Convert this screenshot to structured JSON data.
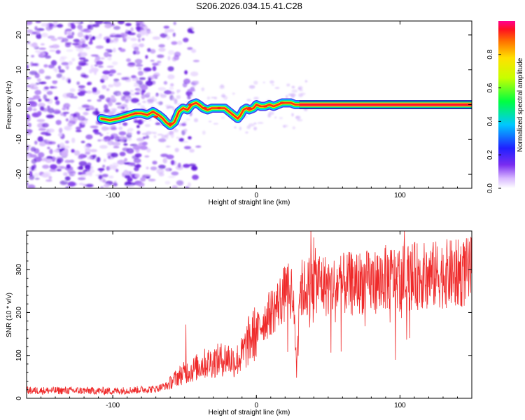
{
  "title": "S206.2026.034.15.41.C28",
  "chart_data": [
    {
      "type": "heatmap",
      "name": "spectrogram",
      "xlabel": "Height of straight line (km)",
      "ylabel": "Frequency (Hz)",
      "xlim": [
        -160,
        150
      ],
      "ylim": [
        -24,
        24
      ],
      "xticks": [
        -100,
        0,
        100
      ],
      "yticks": [
        -20,
        -10,
        0,
        10,
        20
      ],
      "xtick_labels": [
        "-100",
        "0",
        "100"
      ],
      "ytick_labels": [
        "-20",
        "-10",
        "0",
        "10",
        "20"
      ],
      "trace_x": [
        -108,
        -102,
        -96,
        -92,
        -88,
        -84,
        -80,
        -76,
        -72,
        -68,
        -65,
        -63,
        -60,
        -57,
        -54,
        -51,
        -48,
        -45,
        -42,
        -40,
        -37,
        -34,
        -31,
        -28,
        -25,
        -22,
        -19,
        -16,
        -13,
        -11,
        -9,
        -7,
        -5,
        -2,
        0,
        3,
        6,
        9,
        12,
        15,
        18,
        21,
        24,
        27,
        30,
        34,
        40,
        60,
        100,
        150
      ],
      "trace_y": [
        -4,
        -4.5,
        -4,
        -3.5,
        -3,
        -2.5,
        -2.5,
        -3,
        -2,
        -3,
        -4,
        -5,
        -6,
        -5,
        -2,
        -1,
        -1.5,
        0,
        0.5,
        0,
        -1,
        -1.5,
        -1,
        -1,
        -1,
        -1,
        -2,
        -3,
        -4,
        -3,
        -1.5,
        -1,
        -1.5,
        -1,
        0,
        -0.5,
        -0.5,
        0,
        -0.5,
        0,
        0.5,
        0.5,
        0.5,
        0,
        0,
        0,
        0,
        0,
        0,
        0
      ],
      "noise_x_range": [
        -160,
        -60
      ],
      "colorbar": {
        "label": "Normalized spectral amplitude",
        "range": [
          0,
          1
        ],
        "ticks": [
          0.0,
          0.2,
          0.4,
          0.6,
          0.8
        ],
        "tick_labels": [
          "0.0",
          "0.2",
          "0.4",
          "0.6",
          "0.8"
        ]
      }
    },
    {
      "type": "line",
      "name": "snr",
      "xlabel": "Height of straight line (km)",
      "ylabel": "SNR (10 * v/v)",
      "xlim": [
        -160,
        150
      ],
      "ylim": [
        0,
        390
      ],
      "xticks": [
        -100,
        0,
        100
      ],
      "yticks": [
        0,
        100,
        200,
        300
      ],
      "xtick_labels": [
        "-100",
        "0",
        "100"
      ],
      "ytick_labels": [
        "0",
        "100",
        "200",
        "300"
      ],
      "color": "#ef2a2a",
      "envelope_x": [
        -160,
        -130,
        -100,
        -80,
        -70,
        -62,
        -55,
        -50,
        -45,
        -40,
        -35,
        -30,
        -25,
        -20,
        -15,
        -10,
        -5,
        0,
        5,
        10,
        15,
        20,
        25,
        28,
        30,
        35,
        40,
        45,
        50,
        60,
        70,
        80,
        90,
        100,
        110,
        120,
        130,
        140,
        150
      ],
      "envelope_y": [
        18,
        18,
        17,
        20,
        22,
        30,
        50,
        60,
        65,
        75,
        82,
        85,
        90,
        95,
        85,
        100,
        135,
        155,
        180,
        200,
        220,
        245,
        255,
        90,
        255,
        255,
        275,
        270,
        260,
        265,
        270,
        270,
        280,
        280,
        285,
        285,
        290,
        290,
        295
      ],
      "spikes": [
        {
          "x": -49,
          "y": 172
        },
        {
          "x": 28,
          "y": 48
        },
        {
          "x": 38,
          "y": 390
        },
        {
          "x": 40,
          "y": 375
        },
        {
          "x": 103,
          "y": 390
        }
      ]
    }
  ]
}
